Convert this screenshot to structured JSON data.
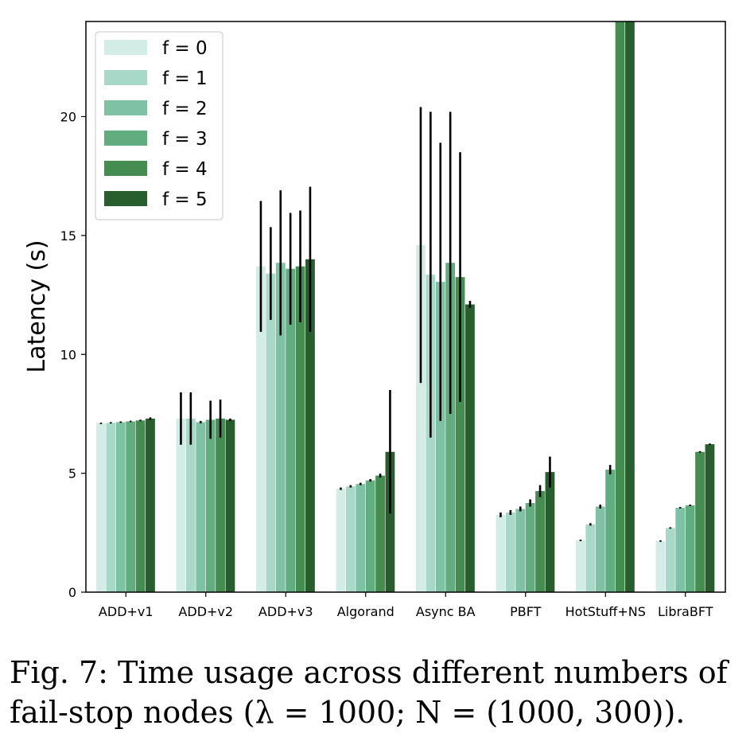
{
  "chart_data": {
    "type": "bar",
    "title": "",
    "xlabel": "",
    "ylabel": "Latency (s)",
    "ylim": [
      0,
      24
    ],
    "yticks": [
      0,
      5,
      10,
      15,
      20
    ],
    "grid": false,
    "legend_position": "top-left",
    "categories": [
      "ADD+v1",
      "ADD+v2",
      "ADD+v3",
      "Algorand",
      "Async BA",
      "PBFT",
      "HotStuff+NS",
      "LibraBFT"
    ],
    "series": [
      {
        "name": "f = 0",
        "color": "#d3ece6",
        "values": [
          7.1,
          7.3,
          13.7,
          4.35,
          14.6,
          3.25,
          2.18,
          2.15
        ],
        "errors": [
          0.03,
          1.1,
          2.75,
          0.05,
          5.8,
          0.1,
          0.03,
          0.03
        ]
      },
      {
        "name": "f = 1",
        "color": "#a8d8c8",
        "values": [
          7.12,
          7.3,
          13.4,
          4.45,
          13.35,
          3.35,
          2.85,
          2.7
        ],
        "errors": [
          0.03,
          1.1,
          1.95,
          0.05,
          6.85,
          0.1,
          0.05,
          0.03
        ]
      },
      {
        "name": "f = 2",
        "color": "#7fc1a5",
        "values": [
          7.15,
          7.15,
          13.85,
          4.55,
          13.05,
          3.5,
          3.6,
          3.55
        ],
        "errors": [
          0.03,
          0.05,
          3.05,
          0.05,
          5.85,
          0.1,
          0.08,
          0.03
        ]
      },
      {
        "name": "f = 3",
        "color": "#62ad80",
        "values": [
          7.18,
          7.25,
          13.6,
          4.7,
          13.85,
          3.75,
          5.15,
          3.65
        ],
        "errors": [
          0.03,
          0.8,
          2.35,
          0.05,
          6.35,
          0.15,
          0.2,
          0.03
        ]
      },
      {
        "name": "f = 4",
        "color": "#458c50",
        "values": [
          7.22,
          7.3,
          13.7,
          4.9,
          13.25,
          4.25,
          26.0,
          5.9
        ],
        "errors": [
          0.03,
          0.8,
          2.35,
          0.08,
          5.25,
          0.25,
          2.0,
          0.03
        ]
      },
      {
        "name": "f = 5",
        "color": "#285e2e",
        "values": [
          7.3,
          7.25,
          14.0,
          5.9,
          12.1,
          5.05,
          26.0,
          6.22
        ],
        "errors": [
          0.05,
          0.05,
          3.05,
          2.6,
          0.15,
          0.65,
          2.0,
          0.03
        ]
      }
    ]
  },
  "caption": "Fig. 7: Time usage across different numbers of fail-stop nodes (λ = 1000; N = (1000, 300))."
}
